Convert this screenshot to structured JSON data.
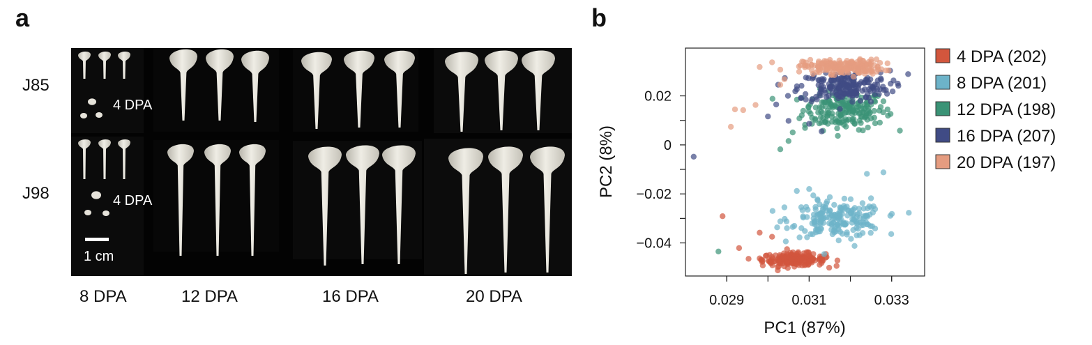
{
  "panel_a": {
    "letter": "a",
    "rows": [
      "J85",
      "J98"
    ],
    "columns": [
      "8 DPA",
      "12 DPA",
      "16 DPA",
      "20 DPA"
    ],
    "inset_labels": [
      "4 DPA",
      "4 DPA"
    ],
    "scale_bar_label": "1 cm"
  },
  "panel_b": {
    "letter": "b"
  },
  "chart_data": {
    "type": "scatter",
    "xlabel": "PC1 (87%)",
    "ylabel": "PC2 (8%)",
    "xlim": [
      0.028,
      0.0338
    ],
    "ylim": [
      -0.0535,
      0.0395
    ],
    "xticks": [
      0.029,
      0.031,
      0.033
    ],
    "xtick_labels": [
      "0.029",
      "0.031",
      "0.033"
    ],
    "yticks": [
      0.02,
      0,
      -0.02,
      -0.04
    ],
    "ytick_labels": [
      "0.02",
      "0",
      "−0.02",
      "−0.04"
    ],
    "grid": false,
    "legend_position": "right",
    "series": [
      {
        "name": "4 DPA (202)",
        "n": 202,
        "color": "#d2563d",
        "center": [
          0.03063,
          -0.0468
        ],
        "spread": [
          0.00038,
          0.0013
        ],
        "points": [
          [
            0.0289,
            -0.0291
          ],
          [
            0.0293,
            -0.0421
          ],
          [
            0.0298,
            -0.0358
          ],
          [
            0.0301,
            -0.0375
          ],
          [
            0.0298,
            -0.0463
          ],
          [
            0.0311,
            -0.0445
          ],
          [
            0.0313,
            -0.0482
          ],
          [
            0.0314,
            -0.046
          ]
        ]
      },
      {
        "name": "8 DPA (201)",
        "n": 201,
        "color": "#6db3c9",
        "center": [
          0.03168,
          -0.0305
        ],
        "spread": [
          0.00055,
          0.0035
        ],
        "points": [
          [
            0.0306,
            -0.0335
          ],
          [
            0.0307,
            -0.0188
          ],
          [
            0.031,
            -0.018
          ],
          [
            0.0311,
            -0.0206
          ],
          [
            0.0315,
            -0.0213
          ],
          [
            0.0312,
            -0.0222
          ],
          [
            0.0324,
            -0.0118
          ],
          [
            0.0325,
            -0.0218
          ],
          [
            0.0328,
            -0.0112
          ],
          [
            0.0326,
            -0.0262
          ],
          [
            0.0303,
            -0.0312
          ],
          [
            0.0304,
            -0.0255
          ],
          [
            0.0321,
            -0.0412
          ]
        ]
      },
      {
        "name": "12 DPA (198)",
        "n": 198,
        "color": "#3a9376",
        "center": [
          0.03185,
          0.0142
        ],
        "spread": [
          0.0005,
          0.004
        ],
        "points": [
          [
            0.0288,
            -0.0435
          ],
          [
            0.0303,
            -0.0018
          ],
          [
            0.0305,
            0.0016
          ],
          [
            0.0306,
            0.0051
          ],
          [
            0.0309,
            0.0069
          ],
          [
            0.0332,
            0.0058
          ],
          [
            0.0328,
            0.0178
          ],
          [
            0.0326,
            0.0088
          ],
          [
            0.0329,
            0.0145
          ]
        ]
      },
      {
        "name": "16 DPA (207)",
        "n": 207,
        "color": "#404b85",
        "center": [
          0.03185,
          0.0238
        ],
        "spread": [
          0.00055,
          0.0032
        ],
        "points": [
          [
            0.0282,
            -0.0048
          ],
          [
            0.0302,
            0.0165
          ],
          [
            0.03,
            0.0116
          ],
          [
            0.0305,
            0.0098
          ],
          [
            0.0308,
            0.0192
          ],
          [
            0.0334,
            0.0289
          ],
          [
            0.0313,
            0.0055
          ],
          [
            0.031,
            0.0086
          ]
        ]
      },
      {
        "name": "20 DPA (197)",
        "n": 197,
        "color": "#e59c80",
        "center": [
          0.03183,
          0.0318
        ],
        "spread": [
          0.00048,
          0.0015
        ],
        "points": [
          [
            0.0291,
            0.0074
          ],
          [
            0.0292,
            0.0145
          ],
          [
            0.0294,
            0.0142
          ],
          [
            0.0297,
            0.0163
          ],
          [
            0.0298,
            0.0318
          ],
          [
            0.0301,
            0.0337
          ],
          [
            0.0303,
            0.0307
          ],
          [
            0.0303,
            0.0245
          ],
          [
            0.0304,
            0.0268
          ]
        ]
      }
    ]
  }
}
